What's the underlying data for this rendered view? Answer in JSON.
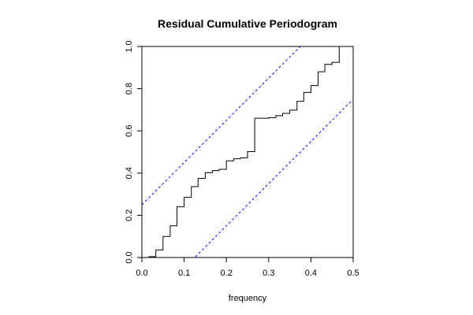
{
  "chart_data": {
    "type": "line",
    "title": "Residual Cumulative Periodogram",
    "xlabel": "frequency",
    "ylabel": "",
    "xlim": [
      0,
      0.5
    ],
    "ylim": [
      0,
      1
    ],
    "grid": false,
    "x_ticks": [
      "0.0",
      "0.1",
      "0.2",
      "0.3",
      "0.4",
      "0.5"
    ],
    "y_ticks": [
      "0.0",
      "0.2",
      "0.4",
      "0.6",
      "0.8",
      "1.0"
    ],
    "x_tick_values": [
      0,
      0.1,
      0.2,
      0.3,
      0.4,
      0.5
    ],
    "y_tick_values": [
      0,
      0.2,
      0.4,
      0.6,
      0.8,
      1.0
    ],
    "colors": {
      "periodogram": "#000000",
      "bounds": "#0000ff"
    },
    "series": [
      {
        "style": "step",
        "x": [
          0.0,
          0.017,
          0.033,
          0.05,
          0.067,
          0.083,
          0.1,
          0.117,
          0.133,
          0.15,
          0.167,
          0.183,
          0.2,
          0.217,
          0.233,
          0.25,
          0.267,
          0.283,
          0.3,
          0.317,
          0.333,
          0.35,
          0.367,
          0.383,
          0.4,
          0.417,
          0.433,
          0.45,
          0.467,
          0.475
        ],
        "y": [
          0.0,
          0.004,
          0.036,
          0.1,
          0.15,
          0.24,
          0.285,
          0.336,
          0.375,
          0.402,
          0.412,
          0.418,
          0.458,
          0.468,
          0.472,
          0.502,
          0.66,
          0.66,
          0.663,
          0.672,
          0.683,
          0.698,
          0.74,
          0.782,
          0.815,
          0.88,
          0.915,
          0.925,
          1.0,
          1.0
        ]
      },
      {
        "style": "dashed",
        "x": [
          0.0,
          0.5
        ],
        "y": [
          0.25,
          1.25
        ]
      },
      {
        "style": "dashed",
        "x": [
          0.0,
          0.5
        ],
        "y": [
          -0.25,
          0.75
        ]
      }
    ]
  }
}
